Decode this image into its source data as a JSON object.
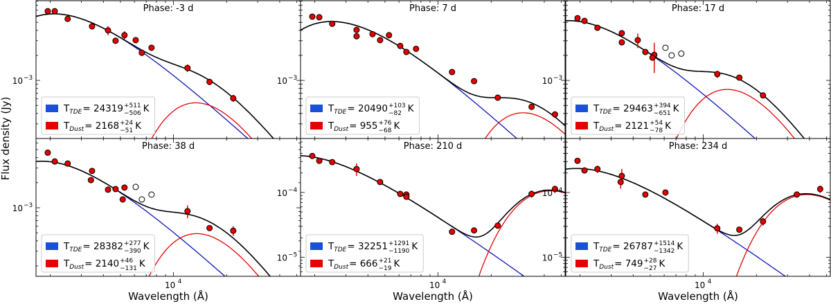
{
  "y_axis_label": "Flux density (Jy)",
  "x_axis_label": "Wavelength (Å)",
  "colors": {
    "tde_line": "#0a14b4",
    "tde_patch": "#1a4fd8",
    "dust": "#e60000",
    "total": "#000000",
    "marker": "#e60000"
  },
  "legend_unit": "K",
  "chart_data": [
    {
      "type": "scatter+line",
      "title": "Phase: -3 d",
      "xscale": "log",
      "yscale": "log",
      "xlim": [
        1660,
        52500
      ],
      "ylim": [
        0.0002,
        0.0091
      ],
      "x_ticks": [
        {
          "value": 10000,
          "base": "10",
          "exp": "4"
        }
      ],
      "y_ticks": [
        {
          "value": 0.001,
          "base": "10",
          "exp": "−3"
        }
      ],
      "legend": [
        {
          "sym": "T",
          "sub": "TDE",
          "value": "24319",
          "plus": "+511",
          "minus": "−506"
        },
        {
          "sym": "T",
          "sub": "Dust",
          "value": "2168",
          "plus": "+24",
          "minus": "−51"
        }
      ],
      "T_TDE": 24319,
      "T_Dust": 2168,
      "points": [
        {
          "x": 1935,
          "y": 0.0068
        },
        {
          "x": 2120,
          "y": 0.0068
        },
        {
          "x": 2510,
          "y": 0.0055
        },
        {
          "x": 3450,
          "y": 0.00447
        },
        {
          "x": 4250,
          "y": 0.004,
          "yerr": 0.0005
        },
        {
          "x": 4690,
          "y": 0.003
        },
        {
          "x": 5270,
          "y": 0.0035,
          "yerr": 0.0004
        },
        {
          "x": 6100,
          "y": 0.00305
        },
        {
          "x": 6610,
          "y": 0.00215
        },
        {
          "x": 7500,
          "y": 0.00247
        },
        {
          "x": 12000,
          "y": 0.00141,
          "yerr": 0.00015
        },
        {
          "x": 16000,
          "y": 0.00096,
          "yerr": 8e-05
        },
        {
          "x": 21800,
          "y": 0.00061,
          "yerr": 6e-05
        }
      ]
    },
    {
      "type": "scatter+line",
      "title": "Phase: 7 d",
      "xscale": "log",
      "yscale": "log",
      "xlim": [
        1660,
        52500
      ],
      "ylim": [
        0.0002,
        0.0091
      ],
      "x_ticks": [
        {
          "value": 10000,
          "base": "10",
          "exp": "4"
        }
      ],
      "y_ticks": [
        {
          "value": 0.001,
          "base": "10",
          "exp": "−3"
        }
      ],
      "legend": [
        {
          "sym": "T",
          "sub": "TDE",
          "value": "20490",
          "plus": "+103",
          "minus": "−82"
        },
        {
          "sym": "T",
          "sub": "Dust",
          "value": "955",
          "plus": "+76",
          "minus": "−68"
        }
      ],
      "T_TDE": 20490,
      "T_Dust": 955,
      "points": [
        {
          "x": 1935,
          "y": 0.00585
        },
        {
          "x": 2120,
          "y": 0.00575
        },
        {
          "x": 2510,
          "y": 0.0048
        },
        {
          "x": 3450,
          "y": 0.00405
        },
        {
          "x": 3450,
          "y": 0.0034
        },
        {
          "x": 4250,
          "y": 0.0036
        },
        {
          "x": 4690,
          "y": 0.00305
        },
        {
          "x": 5270,
          "y": 0.0035
        },
        {
          "x": 6100,
          "y": 0.0026
        },
        {
          "x": 6610,
          "y": 0.0022
        },
        {
          "x": 7500,
          "y": 0.0024
        },
        {
          "x": 12000,
          "y": 0.00126
        },
        {
          "x": 16000,
          "y": 0.00098
        },
        {
          "x": 21800,
          "y": 0.00062
        },
        {
          "x": 33900,
          "y": 0.00048
        },
        {
          "x": 46000,
          "y": 0.00039
        }
      ]
    },
    {
      "type": "scatter+line",
      "title": "Phase: 17 d",
      "xscale": "log",
      "yscale": "log",
      "xlim": [
        1660,
        52500
      ],
      "ylim": [
        0.0002,
        0.0091
      ],
      "x_ticks": [
        {
          "value": 10000,
          "base": "10",
          "exp": "4"
        }
      ],
      "y_ticks": [
        {
          "value": 0.001,
          "base": "10",
          "exp": "−3"
        }
      ],
      "legend": [
        {
          "sym": "T",
          "sub": "TDE",
          "value": "29463",
          "plus": "+394",
          "minus": "−651"
        },
        {
          "sym": "T",
          "sub": "Dust",
          "value": "2121",
          "plus": "+54",
          "minus": "−78"
        }
      ],
      "T_TDE": 29463,
      "T_Dust": 2121,
      "points": [
        {
          "x": 1935,
          "y": 0.0056
        },
        {
          "x": 2120,
          "y": 0.0052
        },
        {
          "x": 2510,
          "y": 0.0043
        },
        {
          "x": 3450,
          "y": 0.0037
        },
        {
          "x": 3450,
          "y": 0.00287
        },
        {
          "x": 4250,
          "y": 0.00305,
          "yerr": 0.0006
        },
        {
          "x": 4690,
          "y": 0.0022
        },
        {
          "x": 5270,
          "y": 0.00203,
          "yerr": 0.0008
        },
        {
          "x": 5150,
          "y": 0.00188
        },
        {
          "x": 6100,
          "y": 0.00247,
          "open": true
        },
        {
          "x": 6610,
          "y": 0.002,
          "open": true
        },
        {
          "x": 7500,
          "y": 0.0021,
          "open": true
        },
        {
          "x": 12000,
          "y": 0.00119,
          "yerr": 0.00012
        },
        {
          "x": 16000,
          "y": 0.00108
        },
        {
          "x": 21800,
          "y": 0.00066
        }
      ]
    },
    {
      "type": "scatter+line",
      "title": "Phase: 38 d",
      "xscale": "log",
      "yscale": "log",
      "xlim": [
        1660,
        52500
      ],
      "ylim": [
        0.00015,
        0.0068
      ],
      "x_ticks": [
        {
          "value": 10000,
          "base": "10",
          "exp": "4"
        }
      ],
      "y_ticks": [
        {
          "value": 0.001,
          "base": "10",
          "exp": "−3"
        }
      ],
      "legend": [
        {
          "sym": "T",
          "sub": "TDE",
          "value": "28382",
          "plus": "+277",
          "minus": "−390"
        },
        {
          "sym": "T",
          "sub": "Dust",
          "value": "2140",
          "plus": "+46",
          "minus": "−131"
        }
      ],
      "T_TDE": 28382,
      "T_Dust": 2140,
      "points": [
        {
          "x": 1935,
          "y": 0.0046
        },
        {
          "x": 2120,
          "y": 0.0036
        },
        {
          "x": 2510,
          "y": 0.0034
        },
        {
          "x": 3450,
          "y": 0.00277
        },
        {
          "x": 3400,
          "y": 0.00215
        },
        {
          "x": 4250,
          "y": 0.00165
        },
        {
          "x": 4690,
          "y": 0.00168
        },
        {
          "x": 5270,
          "y": 0.00175
        },
        {
          "x": 5150,
          "y": 0.00126
        },
        {
          "x": 6100,
          "y": 0.00178,
          "open": true
        },
        {
          "x": 6610,
          "y": 0.00126,
          "open": true
        },
        {
          "x": 7500,
          "y": 0.00144,
          "open": true
        },
        {
          "x": 12000,
          "y": 0.00091,
          "yerr": 0.00016
        },
        {
          "x": 16000,
          "y": 0.00057,
          "yerr": 4e-05
        },
        {
          "x": 21800,
          "y": 0.00053,
          "yerr": 7e-05
        }
      ]
    },
    {
      "type": "scatter+line",
      "title": "Phase: 210 d",
      "xscale": "log",
      "yscale": "log",
      "xlim": [
        1660,
        52500
      ],
      "ylim": [
        5.1e-06,
        0.00068
      ],
      "x_ticks": [
        {
          "value": 10000,
          "base": "10",
          "exp": "4"
        }
      ],
      "y_ticks": [
        {
          "value": 0.0001,
          "base": "10",
          "exp": "−4"
        },
        {
          "value": 1e-05,
          "base": "10",
          "exp": "−5"
        }
      ],
      "legend": [
        {
          "sym": "T",
          "sub": "TDE",
          "value": "32251",
          "plus": "+1291",
          "minus": "−1190"
        },
        {
          "sym": "T",
          "sub": "Dust",
          "value": "666",
          "plus": "+21",
          "minus": "−19"
        }
      ],
      "T_TDE": 32251,
      "T_Dust": 666,
      "points": [
        {
          "x": 1935,
          "y": 0.000366
        },
        {
          "x": 2120,
          "y": 0.000308
        },
        {
          "x": 2510,
          "y": 0.000294,
          "yerr": 3e-05
        },
        {
          "x": 3450,
          "y": 0.00023,
          "yerr": 5e-05
        },
        {
          "x": 4690,
          "y": 0.000145
        },
        {
          "x": 6100,
          "y": 9.5e-05
        },
        {
          "x": 6610,
          "y": 9.3e-05
        },
        {
          "x": 6610,
          "y": 8.6e-05
        },
        {
          "x": 12000,
          "y": 2.48e-05
        },
        {
          "x": 16000,
          "y": 2.6e-05,
          "yerr": 2e-06
        },
        {
          "x": 21800,
          "y": 3.08e-05,
          "yerr": 3e-06
        },
        {
          "x": 33900,
          "y": 9.5e-05,
          "yerr": 1.2e-05
        },
        {
          "x": 46000,
          "y": 0.000113,
          "yerr": 1.5e-05
        }
      ]
    },
    {
      "type": "scatter+line",
      "title": "Phase: 234 d",
      "xscale": "log",
      "yscale": "log",
      "xlim": [
        1660,
        52500
      ],
      "ylim": [
        5.1e-06,
        0.00068
      ],
      "x_ticks": [
        {
          "value": 10000,
          "base": "10",
          "exp": "4"
        }
      ],
      "y_ticks": [
        {
          "value": 0.0001,
          "base": "10",
          "exp": "−4"
        },
        {
          "value": 1e-05,
          "base": "10",
          "exp": "−5"
        }
      ],
      "legend": [
        {
          "sym": "T",
          "sub": "TDE",
          "value": "26787",
          "plus": "+1514",
          "minus": "−1342"
        },
        {
          "sym": "T",
          "sub": "Dust",
          "value": "749",
          "plus": "+28",
          "minus": "−27"
        }
      ],
      "T_TDE": 26787,
      "T_Dust": 749,
      "points": [
        {
          "x": 1935,
          "y": 0.000308
        },
        {
          "x": 2120,
          "y": 0.000219
        },
        {
          "x": 2510,
          "y": 0.00023,
          "yerr": 3e-05
        },
        {
          "x": 3450,
          "y": 0.00018,
          "yerr": 5e-05
        },
        {
          "x": 3400,
          "y": 0.000145,
          "yerr": 3e-05
        },
        {
          "x": 4690,
          "y": 9.3e-05
        },
        {
          "x": 6100,
          "y": 0.0001
        },
        {
          "x": 12000,
          "y": 2.8e-05,
          "yerr": 5e-06
        },
        {
          "x": 16000,
          "y": 2.67e-05
        },
        {
          "x": 21800,
          "y": 3.57e-05,
          "yerr": 5e-06
        },
        {
          "x": 33900,
          "y": 9.3e-05,
          "yerr": 1e-05
        },
        {
          "x": 46000,
          "y": 0.000113,
          "yerr": 1.5e-05
        }
      ]
    }
  ]
}
